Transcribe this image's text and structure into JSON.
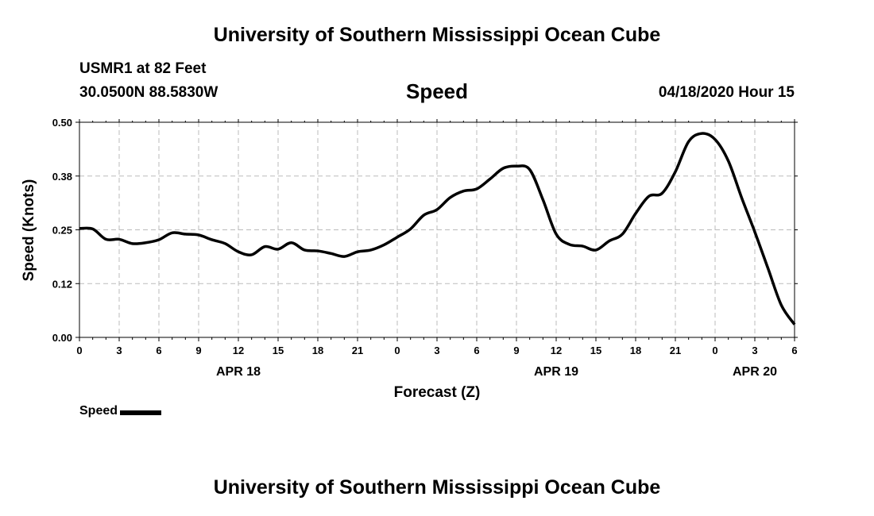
{
  "header": {
    "title": "University of Southern Mississippi Ocean Cube",
    "station": "USMR1 at 82 Feet",
    "coordinates": "30.0500N 88.5830W",
    "parameter": "Speed",
    "issued": "04/18/2020 Hour 15"
  },
  "footer": {
    "title": "University of Southern Mississippi Ocean Cube"
  },
  "legend": {
    "label": "Speed"
  },
  "chart_data": {
    "type": "line",
    "title": "Speed",
    "xlabel": "Forecast (Z)",
    "ylabel": "Speed (Knots)",
    "ylim": [
      0,
      0.5
    ],
    "xlim": [
      0,
      54
    ],
    "grid": true,
    "y_ticks": [
      {
        "value": 0.0,
        "label": "0.00"
      },
      {
        "value": 0.125,
        "label": "0.12"
      },
      {
        "value": 0.25,
        "label": "0.25"
      },
      {
        "value": 0.375,
        "label": "0.38"
      },
      {
        "value": 0.5,
        "label": "0.50"
      }
    ],
    "x_ticks": [
      {
        "value": 0,
        "label": "0"
      },
      {
        "value": 3,
        "label": "3"
      },
      {
        "value": 6,
        "label": "6"
      },
      {
        "value": 9,
        "label": "9"
      },
      {
        "value": 12,
        "label": "12"
      },
      {
        "value": 15,
        "label": "15"
      },
      {
        "value": 18,
        "label": "18"
      },
      {
        "value": 21,
        "label": "21"
      },
      {
        "value": 24,
        "label": "0"
      },
      {
        "value": 27,
        "label": "3"
      },
      {
        "value": 30,
        "label": "6"
      },
      {
        "value": 33,
        "label": "9"
      },
      {
        "value": 36,
        "label": "12"
      },
      {
        "value": 39,
        "label": "15"
      },
      {
        "value": 42,
        "label": "18"
      },
      {
        "value": 45,
        "label": "21"
      },
      {
        "value": 48,
        "label": "0"
      },
      {
        "value": 51,
        "label": "3"
      },
      {
        "value": 54,
        "label": "6"
      }
    ],
    "date_labels": [
      {
        "value": 12,
        "label": "APR 18"
      },
      {
        "value": 36,
        "label": "APR 19"
      },
      {
        "value": 51,
        "label": "APR 20"
      }
    ],
    "series": [
      {
        "name": "Speed",
        "color": "#000000",
        "x": [
          0,
          1,
          2,
          3,
          4,
          5,
          6,
          7,
          8,
          9,
          10,
          11,
          12,
          13,
          14,
          15,
          16,
          17,
          18,
          19,
          20,
          21,
          22,
          23,
          24,
          25,
          26,
          27,
          28,
          29,
          30,
          31,
          32,
          33,
          34,
          35,
          36,
          37,
          38,
          39,
          40,
          41,
          42,
          43,
          44,
          45,
          46,
          47,
          48,
          49,
          50,
          51,
          52,
          53,
          54
        ],
        "values": [
          0.253,
          0.252,
          0.228,
          0.228,
          0.218,
          0.22,
          0.227,
          0.243,
          0.24,
          0.238,
          0.227,
          0.218,
          0.199,
          0.192,
          0.211,
          0.205,
          0.22,
          0.203,
          0.201,
          0.195,
          0.188,
          0.199,
          0.203,
          0.215,
          0.233,
          0.252,
          0.284,
          0.297,
          0.325,
          0.34,
          0.345,
          0.368,
          0.393,
          0.398,
          0.39,
          0.32,
          0.24,
          0.216,
          0.212,
          0.203,
          0.224,
          0.24,
          0.288,
          0.328,
          0.335,
          0.385,
          0.455,
          0.474,
          0.46,
          0.41,
          0.325,
          0.245,
          0.16,
          0.075,
          0.03
        ]
      }
    ]
  }
}
